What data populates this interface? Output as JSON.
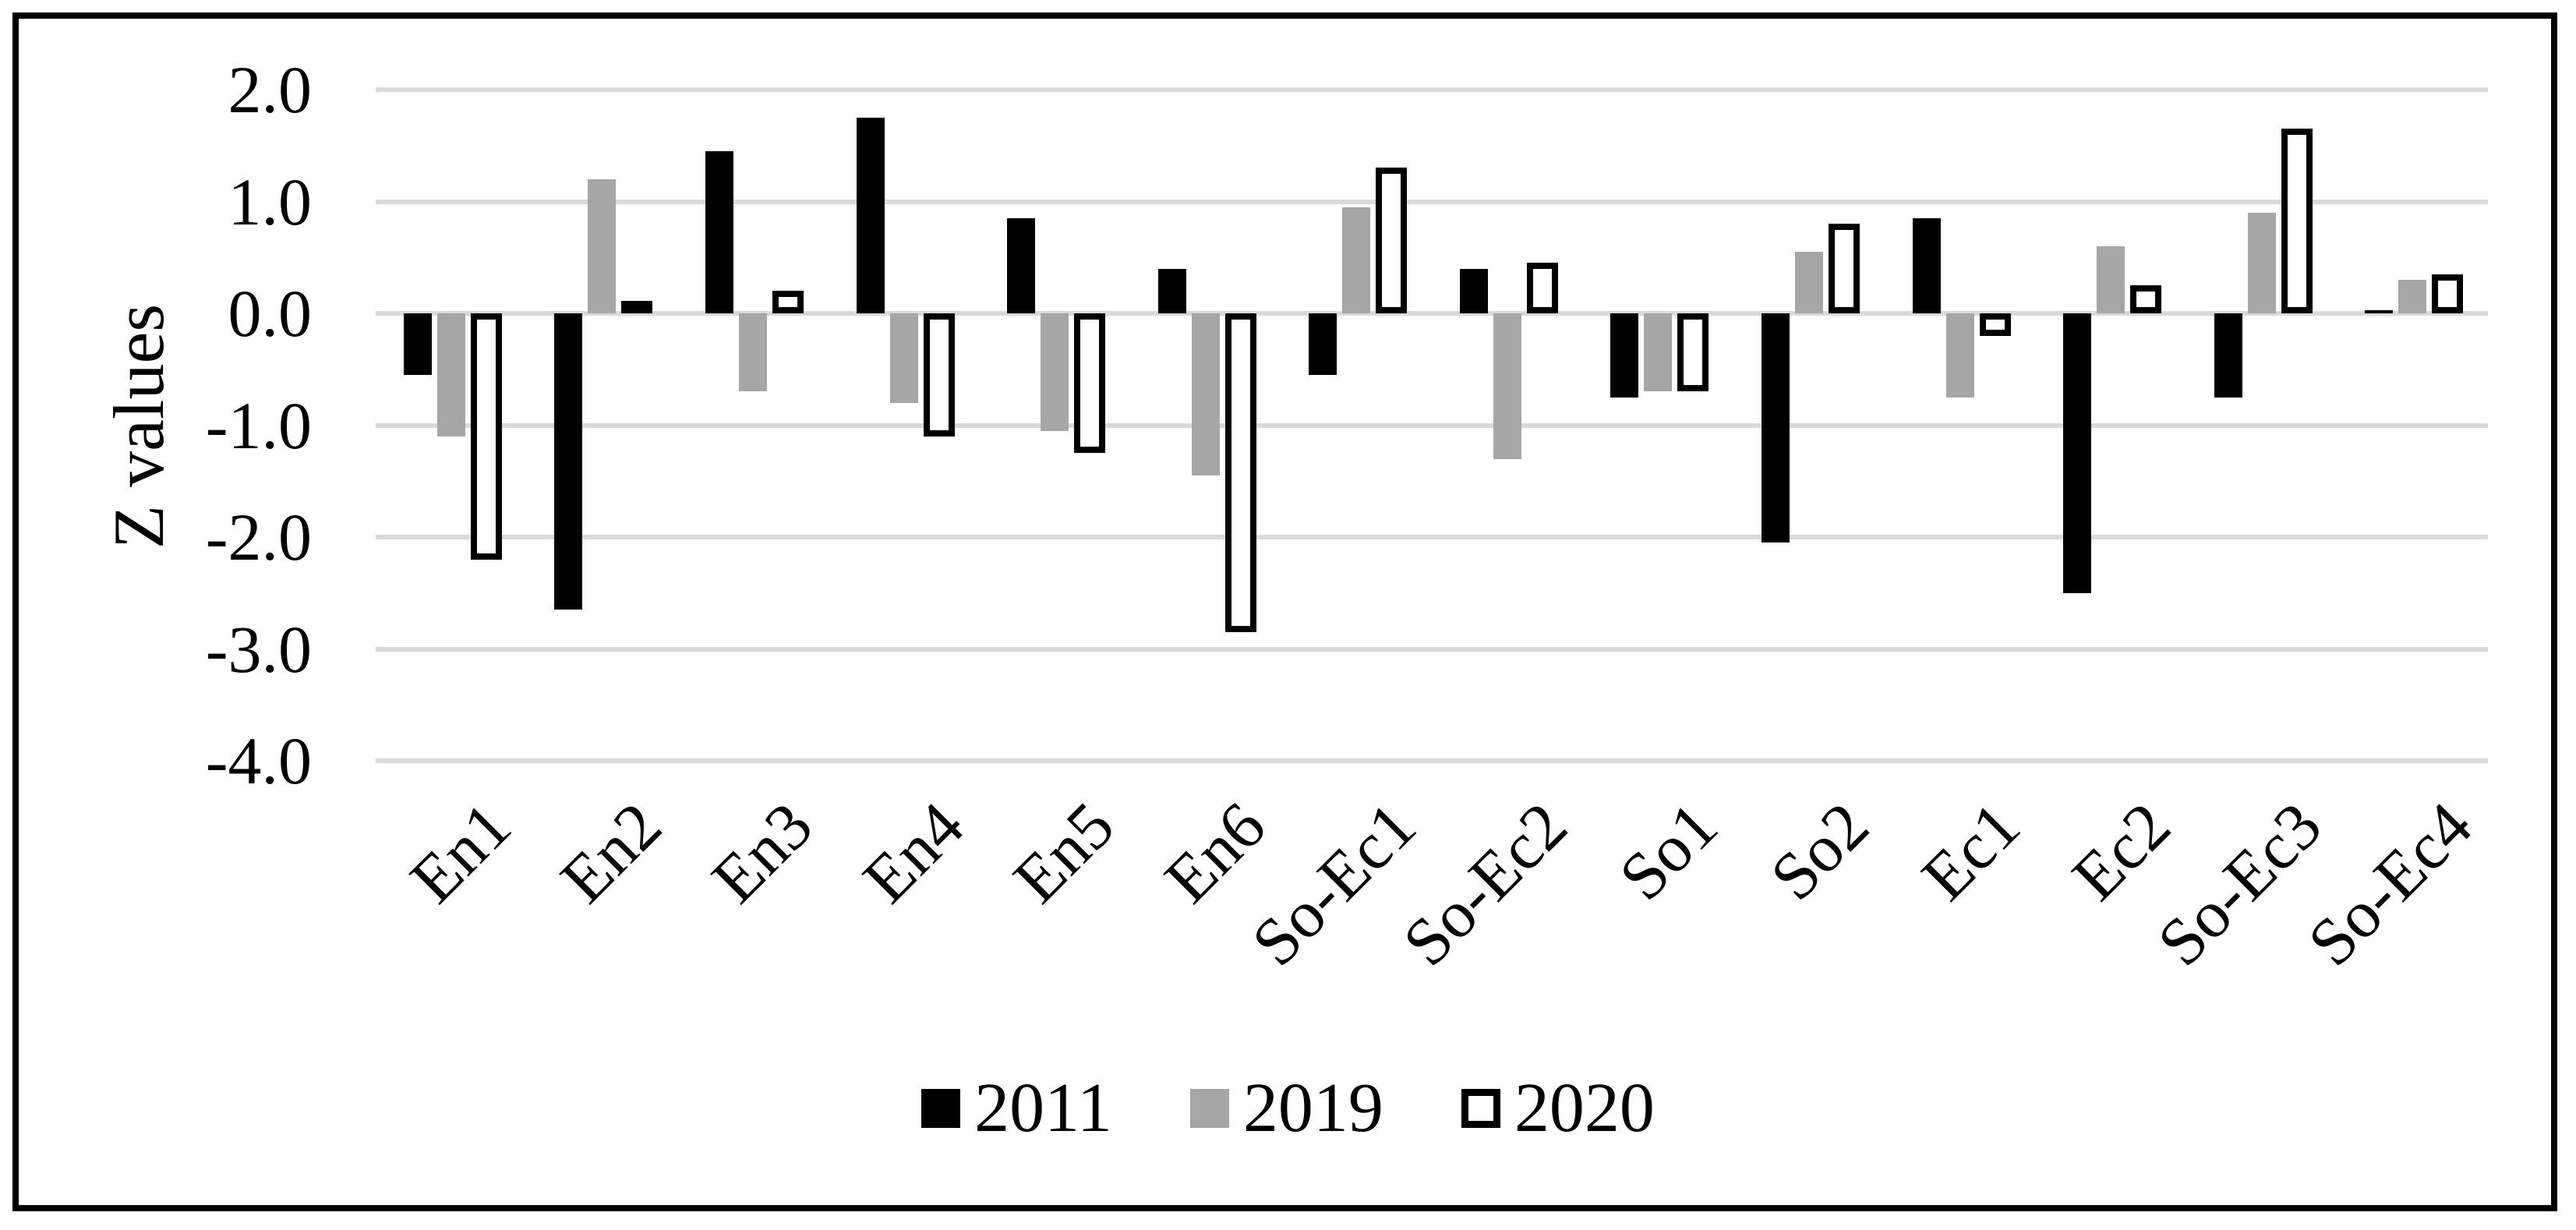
{
  "chart_data": {
    "type": "bar",
    "title": "",
    "ylabel": "Z values",
    "xlabel": "",
    "categories": [
      "En1",
      "En2",
      "En3",
      "En4",
      "En5",
      "En6",
      "So-Ec1",
      "So-Ec2",
      "So1",
      "So2",
      "Ec1",
      "Ec2",
      "So-Ec3",
      "So-Ec4"
    ],
    "series": [
      {
        "name": "2011",
        "values": [
          -0.55,
          -2.65,
          1.45,
          1.75,
          0.85,
          0.4,
          -0.55,
          0.4,
          -0.75,
          -2.05,
          0.85,
          -2.5,
          -0.75,
          0.03
        ]
      },
      {
        "name": "2019",
        "values": [
          -1.1,
          1.2,
          -0.7,
          -0.8,
          -1.05,
          -1.45,
          0.95,
          -1.3,
          -0.7,
          0.55,
          -0.75,
          0.6,
          0.9,
          0.3
        ]
      },
      {
        "name": "2020",
        "values": [
          -2.2,
          0.05,
          0.2,
          -1.1,
          -1.25,
          -2.85,
          1.3,
          0.45,
          -0.7,
          0.8,
          -0.2,
          0.25,
          1.65,
          0.35
        ]
      }
    ],
    "ylim": [
      -4.0,
      2.0
    ],
    "ytick_step": 1.0,
    "ytick_labels": [
      "2.0",
      "1.0",
      "0.0",
      "-1.0",
      "-2.0",
      "-3.0",
      "-4.0"
    ],
    "grid": "horizontal",
    "legend_position": "bottom"
  },
  "legend": {
    "items": [
      {
        "label": "2011",
        "swatch": "black-filled-square"
      },
      {
        "label": "2019",
        "swatch": "gray-filled-square"
      },
      {
        "label": "2020",
        "swatch": "white-outlined-square"
      }
    ]
  },
  "colors": {
    "series_2011": "#000000",
    "series_2019": "#a6a6a6",
    "series_2020_fill": "#ffffff",
    "series_2020_outline": "#000000",
    "gridline": "#d9d9d9",
    "frame": "#000000",
    "background": "#ffffff"
  }
}
